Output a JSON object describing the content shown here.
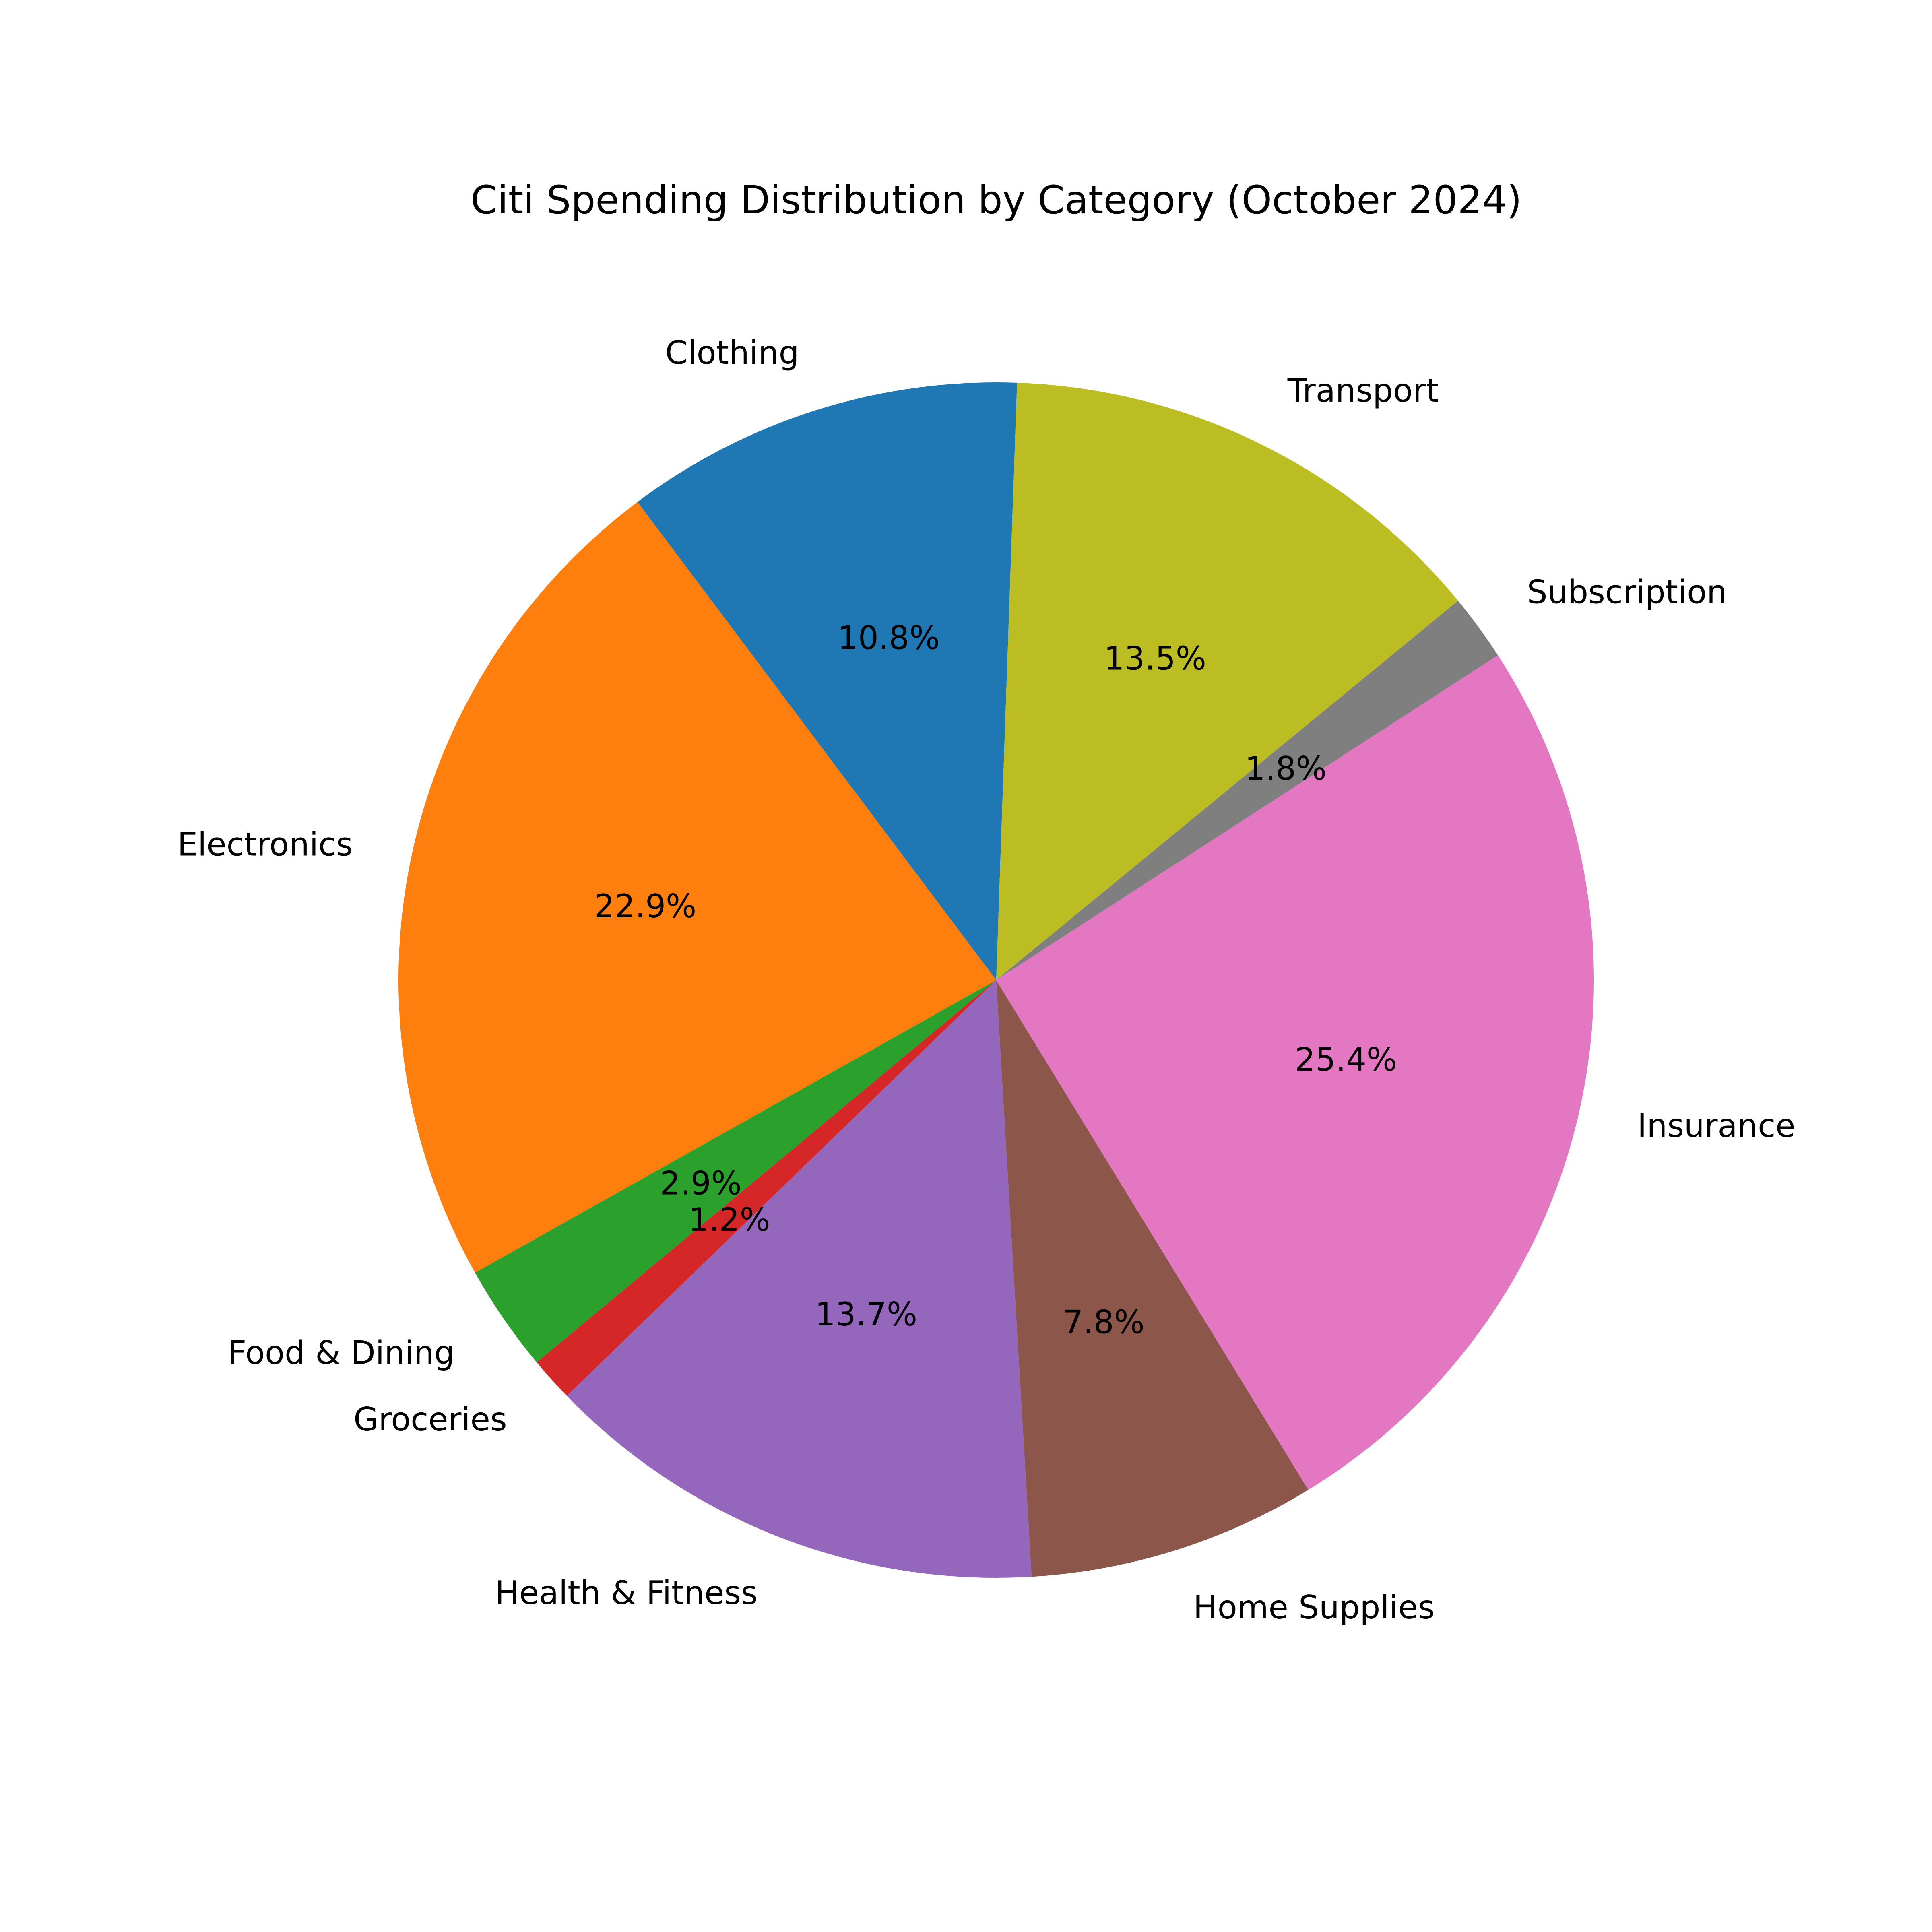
{
  "chart_data": {
    "type": "pie",
    "title": "Citi Spending Distribution by Category (October 2024)",
    "start_angle_deg": 88,
    "direction": "counterclockwise",
    "slices": [
      {
        "label": "Clothing",
        "value": 10.8,
        "pct_label": "10.8%",
        "color": "#1f77b4"
      },
      {
        "label": "Electronics",
        "value": 22.9,
        "pct_label": "22.9%",
        "color": "#ff7f0e"
      },
      {
        "label": "Food & Dining",
        "value": 2.9,
        "pct_label": "2.9%",
        "color": "#2ca02c"
      },
      {
        "label": "Groceries",
        "value": 1.2,
        "pct_label": "1.2%",
        "color": "#d62728"
      },
      {
        "label": "Health & Fitness",
        "value": 13.7,
        "pct_label": "13.7%",
        "color": "#9467bd"
      },
      {
        "label": "Home Supplies",
        "value": 7.8,
        "pct_label": "7.8%",
        "color": "#8c564b"
      },
      {
        "label": "Insurance",
        "value": 25.4,
        "pct_label": "25.4%",
        "color": "#e377c2"
      },
      {
        "label": "Subscription",
        "value": 1.8,
        "pct_label": "1.8%",
        "color": "#7f7f7f"
      },
      {
        "label": "Transport",
        "value": 13.5,
        "pct_label": "13.5%",
        "color": "#bcbd22"
      }
    ]
  }
}
